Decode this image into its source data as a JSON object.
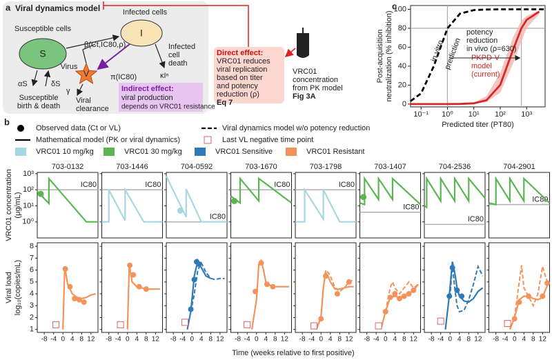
{
  "diagram": {
    "label": "a",
    "title": "Viral dynamics model",
    "susceptible": "Susceptible cells",
    "s": "S",
    "infected": "Infected cells",
    "i": "I",
    "infection_rate": "β(Ct,IC80,ρ)",
    "virus": "Virus",
    "v": "V",
    "production": "π(IC80)",
    "death_rate": "κIⁿ",
    "death": [
      "Infected",
      "cell",
      "death"
    ],
    "alpha": "αS",
    "delta": "δS",
    "birth_death": [
      "Susceptible",
      "birth & death"
    ],
    "gamma": "γ",
    "clearance": [
      "Viral",
      "clearance"
    ],
    "indirect": [
      "Indirect effect:",
      "viral production",
      "depends on VRC01 resistance"
    ],
    "direct": [
      "Direct effect:",
      "VRC01 reduces",
      "viral replication",
      "based on titer",
      "and potency",
      "reduction (ρ)"
    ],
    "direct_ref": "Eq 7",
    "pk": [
      "VRC01",
      "concentration",
      "from PK model"
    ],
    "pk_ref": "Fig 3A"
  },
  "chart_data": [
    {
      "type": "line",
      "label": "c",
      "xlabel": "Predicted titer (PT80)",
      "ylabel": [
        "Post-acquisition",
        "neutralization (% inhibition)"
      ],
      "log_x": true,
      "xlim": [
        0.04,
        5000
      ],
      "xticks": [
        {
          "value": 0.1,
          "label": "10⁻¹"
        },
        {
          "value": 1,
          "label": "10⁰"
        },
        {
          "value": 10,
          "label": "10¹"
        },
        {
          "value": 100,
          "label": "10²"
        },
        {
          "value": 1000,
          "label": "10³"
        }
      ],
      "ylim": [
        -3,
        104
      ],
      "yticks": [
        0,
        20,
        40,
        60,
        80,
        100
      ],
      "reference_x": [
        1,
        630
      ],
      "reference_y": [
        80
      ],
      "annotation": [
        "potency",
        "reduction",
        "in vivo  (ρ=630)"
      ],
      "x": [
        0.04,
        0.1,
        0.3,
        1,
        3,
        10,
        30,
        100,
        300,
        630,
        1000,
        3000,
        5000
      ],
      "series": [
        {
          "label": [
            "in vitro",
            "prediction"
          ],
          "color": "#000000",
          "style": "dashed",
          "values": [
            3.1,
            11.2,
            39.7,
            80,
            95.4,
            99.2,
            99.8,
            100,
            100,
            100,
            100,
            100,
            100
          ]
        },
        {
          "label": [
            "PKPD-V",
            "model",
            "(current)"
          ],
          "color": "#d62728",
          "style": "solid",
          "values": [
            0,
            0,
            0,
            0,
            0.1,
            0.8,
            4.0,
            20.2,
            56.8,
            80,
            88.9,
            97.6,
            null
          ],
          "band_lower": [
            0,
            0,
            0,
            0,
            0,
            0.4,
            2.1,
            12,
            42,
            66,
            80,
            95,
            null
          ],
          "band_upper": [
            0,
            0,
            0,
            0,
            0.2,
            1.6,
            8.5,
            33,
            70,
            88,
            93,
            98.8,
            null
          ],
          "band_color": "#f4b6b0"
        }
      ]
    },
    {
      "type": "small-multiples",
      "label": "b",
      "xlabel": "Time (weeks relative to first positive)",
      "conc_ylabel": [
        "VRC01 concentration",
        "(μg/mL)"
      ],
      "vl_ylabel": [
        "Viral load",
        "log₁₀(copies/mL)"
      ],
      "xlim": [
        -11,
        15
      ],
      "xticks": [
        -8,
        -4,
        0,
        4,
        8,
        12
      ],
      "conc_log": true,
      "conc_ylim": [
        0.1,
        1200
      ],
      "conc_yticks": [
        {
          "value": 1,
          "label": "10⁰"
        },
        {
          "value": 10,
          "label": "10¹"
        },
        {
          "value": 100,
          "label": "10²"
        },
        {
          "value": 1000,
          "label": "10³"
        }
      ],
      "vl_ylim": [
        0.75,
        8.3
      ],
      "vl_yticks": [
        1,
        2,
        3,
        4,
        5,
        6,
        7,
        8
      ],
      "ic80_label": "IC80",
      "ic80_color": "#b0b0b0",
      "negative_color": "#e06060",
      "legend": [
        {
          "label": "Observed data (Ct or VL)",
          "marker": "dot",
          "color": "#000000"
        },
        {
          "label": "Viral dynamics model w/o potency reduction",
          "marker": "dashed",
          "color": "#000000"
        },
        {
          "label": "Mathematical model (PK or viral dynamics)",
          "marker": "line",
          "color": "#000000"
        },
        {
          "label": "Last VL negative time point",
          "marker": "square",
          "color": "#e06060"
        },
        {
          "label": "VRC01 10 mg/kg",
          "marker": "patch",
          "color": "#a8d5e2"
        },
        {
          "label": "VRC01 30 mg/kg",
          "marker": "patch",
          "color": "#5ab552"
        },
        {
          "label": "VRC01 Sensitive",
          "marker": "patch",
          "color": "#2e7ab6"
        },
        {
          "label": "VRC01 Resistant",
          "marker": "patch",
          "color": "#f2935c"
        }
      ],
      "subjects": [
        {
          "id": "703-0132",
          "conc_color": "#5ab552",
          "vl_color": "#f2935c",
          "ic80": 100,
          "conc_x": [
            -11,
            -6,
            -6,
            10,
            15
          ],
          "conc_values": [
            80,
            14,
            500,
            1,
            1
          ],
          "conc_obs_x": [
            -9.5
          ],
          "conc_obs_values": [
            55
          ],
          "vl_x": [
            0,
            0.8,
            2,
            4,
            6,
            8,
            10,
            12,
            14
          ],
          "vl_values": [
            1,
            6.3,
            4.8,
            4.0,
            3.7,
            3.6,
            3.7,
            3.9,
            4.0
          ],
          "vl_obs_x": [
            1,
            3,
            5,
            7,
            9
          ],
          "vl_obs_values": [
            6.1,
            4.6,
            3.6,
            3.5,
            3.3
          ],
          "last_negative_x": -3,
          "last_negative_value": 1.4
        },
        {
          "id": "703-1446",
          "conc_color": "#a8d5e2",
          "vl_color": "#f2935c",
          "ic80": 100,
          "conc_x": [
            -11,
            -8,
            -8,
            -1,
            -1,
            7,
            15
          ],
          "conc_values": [
            1,
            1,
            100,
            1.2,
            100,
            1,
            1
          ],
          "vl_x": [
            0,
            0.8,
            2,
            4,
            6,
            8,
            10,
            12,
            14
          ],
          "vl_values": [
            1,
            6.5,
            5.0,
            4.6,
            4.5,
            4.4,
            4.4,
            4.4,
            4.4
          ],
          "vl_obs_x": [
            1,
            2.5,
            5,
            8
          ],
          "vl_obs_values": [
            6.4,
            5.6,
            4.6,
            4.4
          ],
          "last_negative_x": -3,
          "last_negative_value": 1.4
        },
        {
          "id": "704-0592",
          "conc_color": "#a8d5e2",
          "vl_color": "#2e7ab6",
          "ic80": 1,
          "conc_x": [
            -11,
            -2.5,
            -2.5,
            4,
            15
          ],
          "conc_values": [
            700,
            2,
            110,
            1,
            1
          ],
          "conc_obs_x": [
            -5
          ],
          "conc_obs_values": [
            5
          ],
          "vl_x": [
            -2,
            -0.5,
            1,
            2.5,
            4,
            6,
            8
          ],
          "vl_values": [
            1,
            2.5,
            5.5,
            6.8,
            6.2,
            5.5,
            5.3
          ],
          "vl_dashed_x": [
            -0.5,
            1,
            2.5,
            4,
            6,
            8,
            10,
            12,
            14
          ],
          "vl_dashed_values": [
            2.5,
            4.0,
            6.0,
            6.6,
            5.8,
            5.3,
            5.2,
            5.3,
            5.3
          ],
          "vl_obs_x": [
            -0.5,
            1,
            2,
            3
          ],
          "vl_obs_values": [
            2.7,
            5.2,
            6.7,
            6.5
          ],
          "last_negative_x": -3,
          "last_negative_value": 1.6
        },
        {
          "id": "703-1670",
          "conc_color": "#5ab552",
          "vl_color": "#f2935c",
          "ic80": 100,
          "conc_x": [
            -11,
            -7,
            -7,
            1,
            1,
            15
          ],
          "conc_values": [
            40,
            15,
            500,
            20,
            500,
            15
          ],
          "conc_obs_x": [
            -9.5
          ],
          "conc_obs_values": [
            20
          ],
          "vl_x": [
            -2,
            0,
            1,
            2,
            3,
            4,
            6,
            8,
            10,
            12,
            14
          ],
          "vl_values": [
            1,
            3.5,
            6.5,
            6.8,
            6,
            5,
            4.7,
            4.6,
            4.6,
            4.6,
            4.6
          ],
          "vl_obs_x": [
            -0.5,
            2,
            4.5,
            7
          ],
          "vl_obs_values": [
            4.2,
            6.6,
            4.8,
            4.6
          ],
          "last_negative_x": -4,
          "last_negative_value": 1.4
        },
        {
          "id": "703-1798",
          "conc_color": "#a8d5e2",
          "vl_color": "#f2935c",
          "ic80": 100,
          "conc_x": [
            -11,
            -7,
            -7,
            1,
            1,
            8,
            15
          ],
          "conc_values": [
            1,
            1,
            100,
            1.5,
            100,
            1,
            1
          ],
          "vl_x": [
            -2,
            0,
            1,
            2,
            3,
            4,
            6,
            8,
            10,
            12,
            14
          ],
          "vl_values": [
            1,
            2,
            4.5,
            5.8,
            5.5,
            5.0,
            4.4,
            4.4,
            4.5,
            4.6,
            4.6
          ],
          "vl_dashed_x": [
            0,
            1,
            2,
            3,
            4,
            6,
            8,
            10,
            12,
            14
          ],
          "vl_dashed_values": [
            2,
            4.5,
            6.0,
            5.8,
            5.5,
            4.5,
            4.2,
            4.5,
            5.0,
            5.2
          ],
          "vl_obs_x": [
            0,
            2,
            7,
            12
          ],
          "vl_obs_values": [
            1.9,
            5.5,
            4.0,
            5.0
          ],
          "last_negative_x": -3,
          "last_negative_value": 1.3
        },
        {
          "id": "703-1407",
          "conc_color": "#5ab552",
          "vl_color": "#f2935c",
          "ic80": 4,
          "conc_x": [
            -11,
            -9,
            -9,
            -3,
            -3,
            3,
            3,
            15
          ],
          "conc_values": [
            15,
            12,
            500,
            25,
            500,
            25,
            500,
            12
          ],
          "conc_obs_x": [
            -9.5
          ],
          "conc_obs_values": [
            35
          ],
          "vl_x": [
            -2,
            0,
            2,
            4,
            6,
            8,
            10,
            12,
            14
          ],
          "vl_values": [
            1,
            2.5,
            3.7,
            3.8,
            3.7,
            3.8,
            4.0,
            4.3,
            4.8
          ],
          "vl_dashed_x": [
            0,
            2,
            3,
            4,
            6,
            8,
            10,
            12,
            14
          ],
          "vl_dashed_values": [
            2.5,
            4.5,
            5.0,
            4.5,
            4.0,
            4.5,
            5.0,
            4.5,
            4.8
          ],
          "vl_obs_x": [
            0,
            2,
            4,
            6,
            8,
            10,
            12
          ],
          "vl_obs_values": [
            2.5,
            3.7,
            4.0,
            3.6,
            3.8,
            4.0,
            4.3
          ],
          "last_negative_x": -3,
          "last_negative_value": 1.3
        },
        {
          "id": "704-2536",
          "conc_color": "#5ab552",
          "vl_color": "#2e7ab6",
          "ic80": 0.7,
          "conc_x": [
            -11,
            -10,
            -10,
            -4,
            -4,
            2,
            2,
            8,
            8,
            15
          ],
          "conc_values": [
            10,
            8,
            500,
            20,
            500,
            20,
            500,
            20,
            500,
            30
          ],
          "vl_x": [
            -2,
            -0.5,
            0,
            1,
            2,
            3,
            4,
            6,
            8,
            10,
            12,
            14
          ],
          "vl_values": [
            1,
            3.5,
            4.5,
            6.7,
            5.8,
            4.5,
            3.8,
            3.4,
            3.3,
            3.6,
            4.2,
            4.5
          ],
          "vl_dashed_x": [
            0,
            1,
            2,
            3,
            4,
            6,
            8,
            10,
            12,
            14
          ],
          "vl_dashed_values": [
            3.7,
            6.5,
            4.5,
            3.0,
            2.5,
            2.6,
            3.5,
            4.8,
            6.3,
            5.5
          ],
          "vl_obs_x": [
            -0.3,
            1,
            3,
            5
          ],
          "vl_obs_values": [
            3.8,
            6.2,
            4.3,
            3.8
          ],
          "last_negative_x": -4,
          "last_negative_value": 1.7
        },
        {
          "id": "704-2901",
          "conc_color": "#5ab552",
          "vl_color": "#f2935c",
          "ic80": 12,
          "conc_x": [
            -11,
            -8,
            -8,
            -2,
            -2,
            4,
            4,
            15
          ],
          "conc_values": [
            15,
            12,
            500,
            20,
            500,
            20,
            500,
            15
          ],
          "vl_x": [
            -2,
            0,
            2,
            4,
            6,
            8,
            10,
            12,
            14
          ],
          "vl_values": [
            1,
            2,
            3.5,
            3.8,
            3.8,
            3.6,
            3.5,
            3.7,
            4.7
          ],
          "vl_dashed_x": [
            0,
            2,
            3,
            4,
            6,
            8,
            10,
            12,
            14
          ],
          "vl_dashed_values": [
            2,
            5,
            6.4,
            4.5,
            3.8,
            3.0,
            4,
            6.3,
            5
          ],
          "vl_obs_x": [
            0,
            2,
            6,
            12,
            14
          ],
          "vl_obs_values": [
            1.9,
            3.3,
            3.8,
            3.8,
            4.9
          ],
          "last_negative_x": -3,
          "last_negative_value": 1.5
        }
      ]
    }
  ]
}
